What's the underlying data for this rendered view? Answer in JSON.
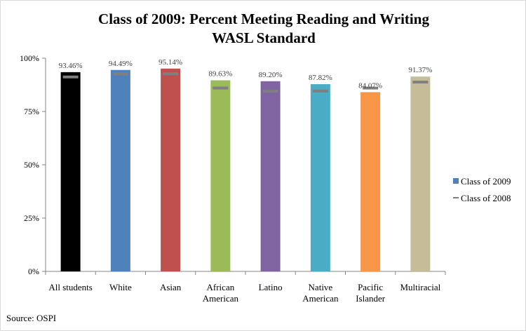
{
  "chart_data": {
    "type": "bar",
    "title_line1": "Class of 2009: Percent Meeting Reading and Writing",
    "title_line2": "WASL Standard",
    "categories": [
      [
        "All students"
      ],
      [
        "White"
      ],
      [
        "Asian"
      ],
      [
        "African",
        "American"
      ],
      [
        "Latino"
      ],
      [
        "Native",
        "American"
      ],
      [
        "Pacific",
        "Islander"
      ],
      [
        "Multiracial"
      ]
    ],
    "series": [
      {
        "name": "Class of 2009",
        "values": [
          93.46,
          94.49,
          95.14,
          89.63,
          89.2,
          87.82,
          84.07,
          91.37
        ],
        "labels": [
          "93.46%",
          "94.49%",
          "95.14%",
          "89.63%",
          "89.20%",
          "87.82%",
          "84.07%",
          "91.37%"
        ]
      },
      {
        "name": "Class of 2008",
        "values": [
          91.2,
          92.6,
          92.7,
          86.0,
          84.5,
          84.6,
          86.0,
          88.8
        ]
      }
    ],
    "bar_colors": [
      "#000000",
      "#4f81bd",
      "#c0504d",
      "#9bbb59",
      "#8064a2",
      "#4bacc6",
      "#f79646",
      "#c4bd97"
    ],
    "marker_color": "#7f7f7f",
    "ylim": [
      0,
      100
    ],
    "yticks": [
      0,
      25,
      50,
      75,
      100
    ],
    "ytick_labels": [
      "0%",
      "25%",
      "50%",
      "75%",
      "100%"
    ],
    "grid": false,
    "legend_position": "right",
    "source": "Source: OSPI"
  }
}
